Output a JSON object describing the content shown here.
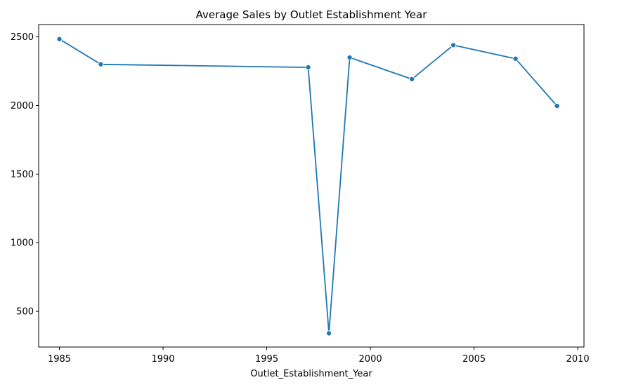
{
  "chart_data": {
    "type": "line",
    "title": "Average Sales by Outlet Establishment Year",
    "xlabel": "Outlet_Establishment_Year",
    "ylabel": "",
    "xlim": [
      1984,
      2010.3
    ],
    "ylim": [
      240,
      2590
    ],
    "xticks": [
      1985,
      1990,
      1995,
      2000,
      2005,
      2010
    ],
    "yticks": [
      500,
      1000,
      1500,
      2000,
      2500
    ],
    "grid": false,
    "color": "#1f77b4",
    "series": [
      {
        "x": [
          1985,
          1987,
          1997,
          1998,
          1999,
          2002,
          2004,
          2007,
          2009
        ],
        "y": [
          2484,
          2300,
          2278,
          340,
          2350,
          2192,
          2440,
          2341,
          1997
        ],
        "marker": "circle"
      }
    ]
  }
}
